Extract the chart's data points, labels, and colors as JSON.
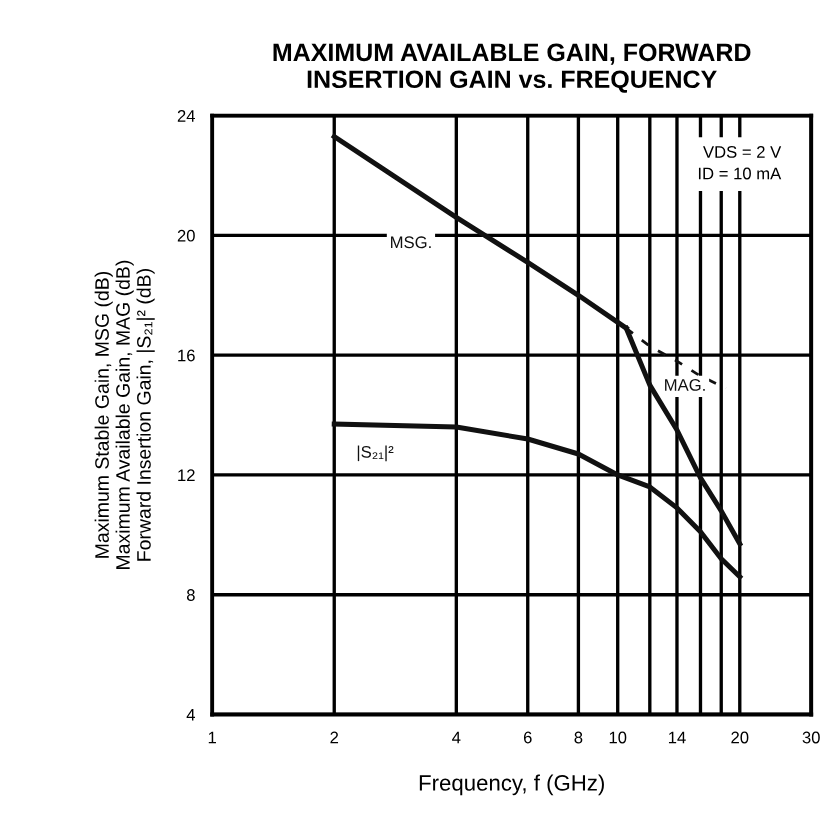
{
  "chart_data": {
    "type": "line",
    "title": "MAXIMUM AVAILABLE GAIN, FORWARD\nINSERTION GAIN vs. FREQUENCY",
    "xlabel": "Frequency, f (GHz)",
    "ylabel": "Maximum Stable Gain, MSG (dB)\nMaximum Available Gain, MAG (dB)\nForward Insertion Gain, |S₂₁|² (dB)",
    "log": "x",
    "grid": true,
    "xlim": [
      1,
      30
    ],
    "ylim": [
      4,
      24
    ],
    "xticks": [
      1,
      2,
      4,
      6,
      8,
      10,
      {
        "value": 12,
        "label": null
      },
      14,
      {
        "value": 16,
        "label": null
      },
      {
        "value": 18,
        "label": null
      },
      20,
      30
    ],
    "yticks": [
      4,
      8,
      12,
      16,
      20,
      24
    ],
    "series": [
      {
        "name": "MSG.",
        "color": "#111111",
        "x": [
          2,
          4,
          6,
          8,
          10.5
        ],
        "values": [
          23.3,
          20.6,
          19.1,
          18.0,
          16.9
        ]
      },
      {
        "name": "MAG.",
        "color": "#111111",
        "x": [
          10.5,
          12,
          14,
          16,
          18,
          20
        ],
        "values": [
          16.9,
          15.0,
          13.5,
          11.9,
          10.8,
          9.7
        ]
      },
      {
        "color": "#111111",
        "line_style": "dashed",
        "x": [
          10.5,
          12,
          14,
          16,
          18.5
        ],
        "values": [
          16.9,
          16.3,
          15.8,
          15.3,
          14.9
        ]
      },
      {
        "name": "|S₂₁|²",
        "color": "#111111",
        "x": [
          2,
          4,
          6,
          8,
          10,
          12,
          14,
          16,
          18,
          20
        ],
        "values": [
          13.7,
          13.6,
          13.2,
          12.7,
          12.0,
          11.6,
          10.9,
          10.1,
          9.2,
          8.6
        ]
      }
    ],
    "annotations": [
      "VDS = 2 V\nID = 10 mA"
    ]
  }
}
